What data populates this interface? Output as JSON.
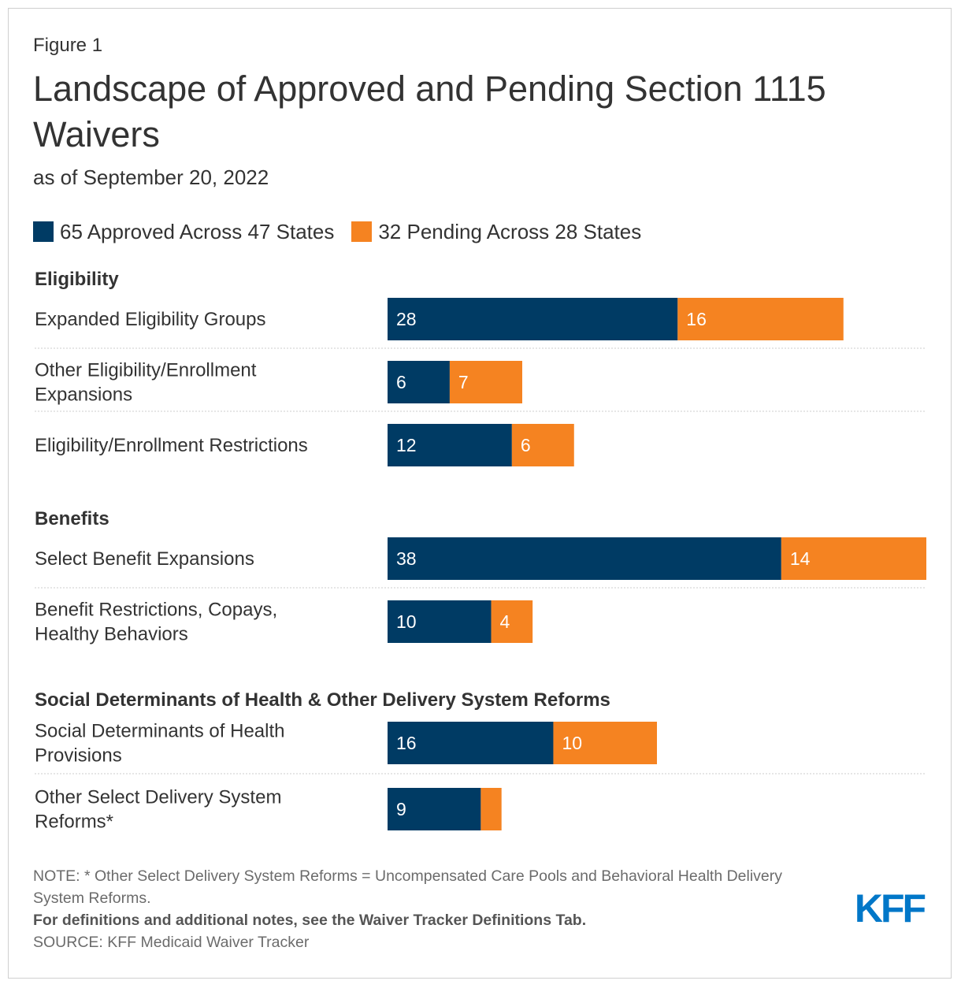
{
  "figure_label": "Figure 1",
  "title": "Landscape of Approved and Pending Section 1115 Waivers",
  "subtitle": "as of September 20, 2022",
  "colors": {
    "approved": "#003b64",
    "pending": "#f58321",
    "divider": "#cccccc",
    "text": "#333333"
  },
  "chart_data": {
    "type": "bar",
    "orientation": "horizontal",
    "stacked": true,
    "title": "Landscape of Approved and Pending Section 1115 Waivers",
    "legend_position": "top-left",
    "series": [
      {
        "name": "65 Approved Across 47 States",
        "key": "approved"
      },
      {
        "name": "32 Pending Across 28 States",
        "key": "pending"
      }
    ],
    "groups": [
      {
        "name": "Eligibility",
        "rows": [
          {
            "label": "Expanded Eligibility Groups",
            "approved": 28,
            "pending": 16,
            "approved_label": "28",
            "pending_label": "16"
          },
          {
            "label": "Other Eligibility/Enrollment Expansions",
            "approved": 6,
            "pending": 7,
            "approved_label": "6",
            "pending_label": "7"
          },
          {
            "label": "Eligibility/Enrollment Restrictions",
            "approved": 12,
            "pending": 6,
            "approved_label": "12",
            "pending_label": "6"
          }
        ]
      },
      {
        "name": "Benefits",
        "rows": [
          {
            "label": "Select Benefit Expansions",
            "approved": 38,
            "pending": 14,
            "approved_label": "38",
            "pending_label": "14"
          },
          {
            "label": "Benefit Restrictions, Copays, Healthy Behaviors",
            "approved": 10,
            "pending": 4,
            "approved_label": "10",
            "pending_label": "4"
          }
        ]
      },
      {
        "name": "Social Determinants of Health & Other Delivery System Reforms",
        "rows": [
          {
            "label": "Social Determinants of Health Provisions",
            "approved": 16,
            "pending": 10,
            "approved_label": "16",
            "pending_label": "10"
          },
          {
            "label": "Other Select Delivery System Reforms*",
            "approved": 9,
            "pending": 2,
            "approved_label": "9",
            "pending_label": ""
          }
        ]
      }
    ],
    "xlim": [
      0,
      52
    ]
  },
  "footer": {
    "note": "NOTE: * Other Select Delivery System Reforms = Uncompensated Care Pools and Behavioral Health Delivery System Reforms.",
    "definitions": "For definitions and additional notes, see the Waiver Tracker Definitions Tab.",
    "source": "SOURCE: KFF Medicaid Waiver Tracker"
  },
  "logo": {
    "text": "KFF",
    "color": "#0077c8"
  }
}
